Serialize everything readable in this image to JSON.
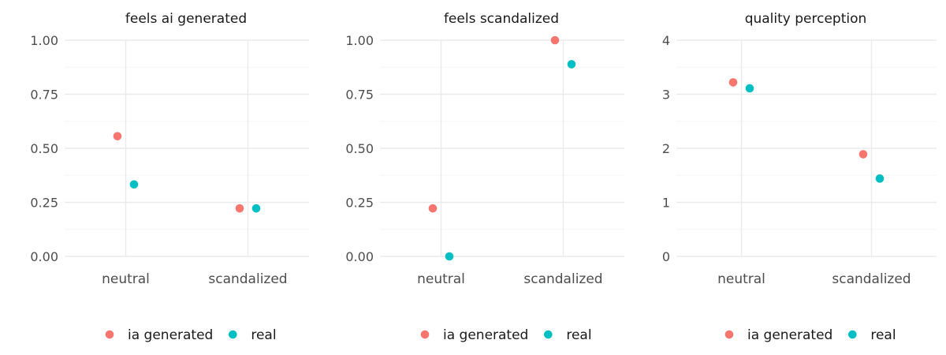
{
  "chart_data": [
    {
      "type": "scatter",
      "title": "feels ai generated",
      "categories": [
        "neutral",
        "scandalized"
      ],
      "ylim": [
        0,
        1
      ],
      "yticks": [
        "0.00",
        "0.25",
        "0.50",
        "0.75",
        "1.00"
      ],
      "ytick_values": [
        0,
        0.25,
        0.5,
        0.75,
        1
      ],
      "grid": true,
      "series": [
        {
          "name": "ia generated",
          "values": [
            0.556,
            0.222
          ]
        },
        {
          "name": "real",
          "values": [
            0.333,
            0.222
          ]
        }
      ],
      "legend": {
        "position": "bottom"
      }
    },
    {
      "type": "scatter",
      "title": "feels scandalized",
      "categories": [
        "neutral",
        "scandalized"
      ],
      "ylim": [
        0,
        1
      ],
      "yticks": [
        "0.00",
        "0.25",
        "0.50",
        "0.75",
        "1.00"
      ],
      "ytick_values": [
        0,
        0.25,
        0.5,
        0.75,
        1
      ],
      "grid": true,
      "series": [
        {
          "name": "ia generated",
          "values": [
            0.222,
            1.0
          ]
        },
        {
          "name": "real",
          "values": [
            0.0,
            0.889
          ]
        }
      ],
      "legend": {
        "position": "bottom"
      }
    },
    {
      "type": "scatter",
      "title": "quality perception",
      "categories": [
        "neutral",
        "scandalized"
      ],
      "ylim": [
        0,
        4
      ],
      "yticks": [
        "0",
        "1",
        "2",
        "3",
        "4"
      ],
      "ytick_values": [
        0,
        1,
        2,
        3,
        4
      ],
      "grid": true,
      "series": [
        {
          "name": "ia generated",
          "values": [
            3.22,
            1.89
          ]
        },
        {
          "name": "real",
          "values": [
            3.11,
            1.44
          ]
        }
      ],
      "legend": {
        "position": "bottom"
      }
    }
  ],
  "colors": {
    "ia generated": "#F8766D",
    "real": "#00BFC4",
    "gridMajor": "#ebebeb",
    "gridMinor": "#f5f5f5",
    "tickText": "#4d4d4d",
    "titleText": "#1a1a1a"
  }
}
